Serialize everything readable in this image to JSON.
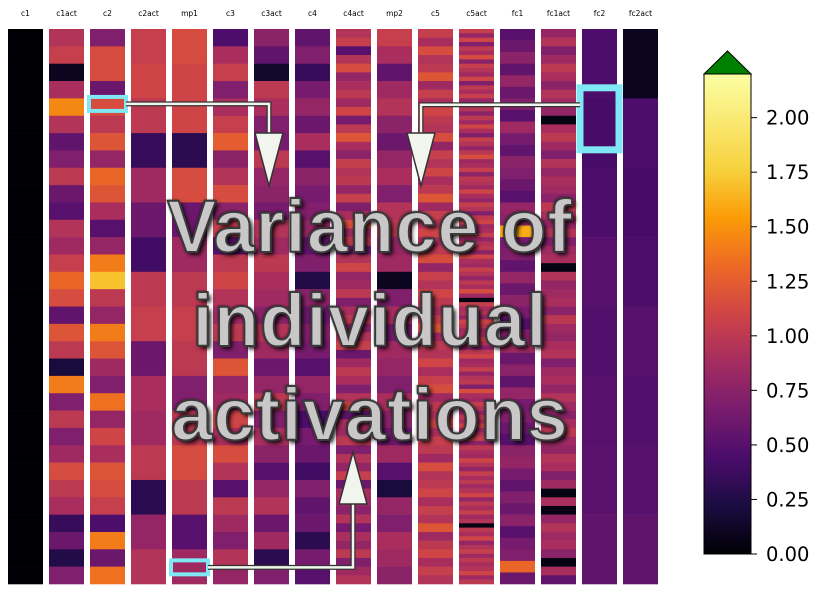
{
  "chart_data": {
    "type": "heatmap",
    "title": "",
    "xlabel": "",
    "ylabel": "",
    "columns": [
      "c1",
      "c1act",
      "c2",
      "c2act",
      "mp1",
      "c3",
      "c3act",
      "c4",
      "c4act",
      "mp2",
      "c5",
      "c5act",
      "fc1",
      "fc1act",
      "fc2",
      "fc2act"
    ],
    "rows_per_column": [
      32,
      32,
      32,
      16,
      16,
      32,
      32,
      32,
      64,
      32,
      64,
      128,
      48,
      64,
      8,
      8
    ],
    "values": [
      [
        0,
        0,
        0,
        0,
        0,
        0,
        0,
        0,
        0,
        0,
        0,
        0,
        0,
        0,
        0,
        0,
        0,
        0,
        0,
        0,
        0,
        0,
        0,
        0,
        0,
        0,
        0,
        0,
        0,
        0,
        0,
        0
      ],
      [
        0.95,
        1.05,
        0.1,
        0.9,
        1.45,
        0.95,
        0.55,
        0.7,
        1.0,
        0.6,
        0.5,
        0.95,
        0.85,
        1.05,
        1.3,
        1.15,
        0.55,
        1.2,
        1.0,
        0.2,
        1.4,
        0.7,
        1.0,
        0.7,
        0.85,
        1.15,
        1.0,
        0.9,
        0.35,
        0.6,
        0.25,
        0.7
      ],
      [
        0.7,
        1.15,
        1.15,
        0.6,
        1.15,
        1.0,
        1.2,
        0.8,
        1.3,
        1.2,
        0.9,
        0.5,
        0.8,
        1.4,
        1.7,
        1.0,
        0.8,
        1.4,
        1.2,
        0.85,
        0.7,
        1.35,
        0.8,
        1.1,
        0.9,
        1.2,
        1.15,
        1.05,
        0.45,
        1.4,
        0.6,
        1.35
      ],
      [
        1.05,
        1.1,
        1.0,
        0.35,
        0.85,
        0.6,
        0.4,
        1.0,
        1.05,
        0.6,
        0.9,
        0.85,
        1.0,
        0.3,
        0.8,
        0.95
      ],
      [
        1.15,
        1.1,
        1.1,
        0.3,
        1.15,
        0.6,
        0.85,
        1.0,
        1.05,
        1.0,
        0.7,
        1.0,
        1.15,
        1.0,
        0.5,
        0.85
      ],
      [
        0.45,
        0.9,
        1.05,
        0.7,
        0.9,
        1.05,
        1.25,
        0.75,
        0.95,
        1.15,
        0.75,
        1.05,
        0.5,
        1.0,
        1.1,
        0.95,
        0.85,
        1.0,
        0.7,
        1.2,
        0.8,
        0.85,
        1.1,
        0.9,
        1.15,
        0.95,
        0.5,
        1.0,
        0.85,
        0.7,
        0.95,
        0.8
      ],
      [
        0.75,
        0.55,
        0.15,
        1.0,
        0.9,
        0.7,
        0.65,
        1.0,
        0.8,
        0.75,
        0.65,
        0.95,
        0.85,
        1.0,
        0.9,
        0.85,
        0.75,
        0.95,
        0.85,
        0.6,
        0.8,
        1.0,
        0.7,
        0.9,
        0.75,
        0.5,
        0.8,
        0.95,
        0.6,
        0.85,
        0.3,
        0.7
      ],
      [
        0.55,
        0.7,
        0.35,
        0.65,
        0.8,
        0.6,
        0.9,
        0.5,
        0.75,
        0.65,
        0.7,
        0.8,
        0.55,
        0.7,
        0.25,
        0.75,
        0.6,
        0.7,
        0.65,
        0.5,
        0.8,
        0.7,
        0.45,
        0.65,
        0.6,
        0.4,
        0.7,
        0.55,
        0.6,
        0.3,
        0.65,
        0.5
      ],
      [
        0.95,
        1.05,
        0.5,
        0.95,
        1.15,
        0.8,
        0.9,
        1.0,
        0.85,
        1.1,
        0.65,
        1.0,
        1.2,
        0.9,
        0.75,
        1.05,
        0.95,
        1.0,
        0.8,
        1.05,
        0.7,
        0.9,
        1.15,
        0.85,
        1.0,
        0.6,
        0.95,
        1.1,
        0.8,
        0.85,
        1.0,
        0.7,
        0.9,
        1.0,
        0.75,
        0.95,
        1.05,
        0.6,
        0.85,
        1.0,
        0.9,
        0.7,
        0.95,
        1.1,
        0.55,
        0.9,
        0.85,
        1.0,
        0.7,
        0.95,
        0.8,
        1.05,
        0.6,
        0.9,
        0.85,
        0.75,
        0.95,
        0.65,
        0.9,
        0.8,
        1.0,
        0.7,
        0.85,
        0.95
      ],
      [
        1.05,
        0.9,
        0.55,
        0.85,
        0.95,
        0.75,
        0.6,
        0.8,
        0.9,
        0.7,
        0.95,
        1.0,
        0.8,
        0.85,
        0.1,
        0.7,
        0.9,
        0.65,
        0.85,
        0.8,
        0.7,
        0.9,
        0.75,
        0.6,
        0.85,
        0.5,
        0.2,
        0.8,
        0.7,
        0.9,
        0.85,
        0.75
      ],
      [
        1.05,
        0.9,
        1.15,
        0.95,
        1.0,
        1.2,
        0.85,
        1.05,
        0.9,
        1.1,
        1.0,
        0.95,
        1.15,
        0.8,
        1.05,
        0.95,
        1.1,
        0.9,
        1.0,
        1.2,
        0.85,
        1.05,
        0.95,
        1.1,
        0.9,
        1.0,
        1.15,
        0.8,
        1.05,
        0.95,
        1.1,
        1.0,
        0.9,
        1.05,
        1.2,
        0.85,
        1.0,
        0.95,
        1.1,
        0.9,
        1.05,
        1.15,
        0.85,
        1.0,
        0.95,
        1.1,
        0.9,
        1.05,
        1.0,
        0.85,
        1.15,
        0.95,
        1.0,
        1.1,
        0.9,
        1.05,
        0.95,
        1.2,
        0.85,
        1.0,
        1.1,
        0.9,
        1.05,
        0.95
      ],
      [
        1.05,
        0.8,
        1.1,
        0.7,
        1.0,
        0.9,
        1.15,
        0.75,
        1.05,
        0.95,
        0.85,
        1.1,
        0.7,
        1.0,
        0.9,
        1.05,
        0.8,
        1.15,
        0.95,
        0.75,
        1.0,
        0.85,
        1.1,
        0.9,
        0.7,
        1.05,
        0.95,
        0.8,
        1.0,
        1.15,
        0.85,
        0.9,
        1.05,
        0.75,
        1.0,
        0.95,
        0.85,
        1.1,
        0.9,
        0.8,
        1.05,
        0.95,
        0.7,
        1.0,
        1.1,
        0.85,
        0.9,
        1.05,
        0.8,
        0.95,
        1.0,
        0.75,
        1.1,
        0.9,
        0.85,
        1.05,
        0.95,
        0.8,
        1.0,
        0.9,
        1.15,
        0.85,
        0.05,
        1.05,
        0.9,
        0.95,
        0.8,
        1.1,
        1.0,
        0.85,
        0.9,
        1.05,
        0.95,
        0.75,
        1.0,
        1.1,
        0.85,
        0.9,
        1.05,
        0.8,
        0.95,
        1.0,
        0.7,
        1.15,
        0.9,
        0.85,
        1.05,
        0.95,
        0.8,
        1.0,
        0.9,
        1.1,
        0.85,
        0.95,
        1.05,
        0.75,
        1.0,
        0.9,
        0.85,
        1.1,
        0.95,
        0.8,
        1.05,
        0.9,
        1.0,
        0.85,
        0.95,
        1.1,
        0.8,
        1.0,
        0.9,
        1.05,
        0.85,
        0.95,
        0.05,
        1.0,
        0.9,
        1.1,
        0.8,
        0.95,
        1.05,
        0.85,
        1.0,
        0.9,
        0.95,
        1.1,
        0.85,
        1.0
      ],
      [
        0.5,
        0.6,
        0.75,
        0.55,
        0.8,
        0.6,
        0.7,
        0.5,
        0.85,
        0.65,
        0.55,
        0.75,
        0.7,
        0.6,
        0.5,
        0.8,
        0.75,
        1.6,
        0.65,
        0.7,
        0.55,
        0.8,
        0.6,
        0.75,
        0.65,
        0.5,
        0.7,
        0.85,
        0.6,
        0.75,
        0.55,
        0.8,
        0.65,
        0.7,
        0.6,
        0.5,
        0.75,
        0.8,
        0.65,
        0.55,
        0.7,
        0.6,
        0.75,
        0.5,
        0.65,
        0.7,
        1.3,
        0.6
      ],
      [
        0.8,
        0.95,
        0.7,
        0.85,
        1.0,
        0.9,
        0.75,
        0.95,
        0.85,
        0.8,
        0.05,
        0.9,
        1.0,
        0.85,
        0.7,
        0.95,
        0.8,
        0.9,
        0.85,
        0.75,
        1.0,
        0.9,
        0.8,
        0.95,
        0.7,
        0.85,
        0.9,
        0.05,
        0.95,
        0.8,
        0.85,
        0.9,
        0.75,
        1.0,
        0.85,
        0.8,
        0.9,
        0.95,
        0.7,
        0.85,
        0.9,
        0.8,
        0.95,
        0.85,
        0.75,
        0.9,
        1.0,
        0.85,
        0.8,
        0.95,
        0.9,
        0.7,
        0.85,
        0.05,
        0.9,
        0.05,
        0.8,
        0.95,
        0.85,
        0.9,
        0.75,
        0.05,
        0.9,
        0.55
      ],
      [
        0.45,
        0.42,
        0.45,
        0.5,
        0.48,
        0.5,
        0.52,
        0.55
      ],
      [
        0.1,
        0.45,
        0.42,
        0.45,
        0.5,
        0.48,
        0.5,
        0.55
      ]
    ],
    "colorbar": {
      "min": 0.0,
      "max": 2.2,
      "extend": "max",
      "ticks": [
        "0.00",
        "0.25",
        "0.50",
        "0.75",
        "1.00",
        "1.25",
        "1.50",
        "1.75",
        "2.00"
      ],
      "extend_color": "#008000"
    },
    "highlights": [
      {
        "column": "c2",
        "row_fraction": 0.135
      },
      {
        "column": "mp1",
        "row_fraction": 0.97
      },
      {
        "column": "fc2",
        "row_fraction": 0.16
      }
    ]
  },
  "overlay": {
    "line1": "Variance of",
    "line2": "individual",
    "line3": "activations"
  },
  "colors": {
    "highlight": "#7fe8f4",
    "arrow_fill": "#f2f4ee",
    "extend": "#008000"
  }
}
